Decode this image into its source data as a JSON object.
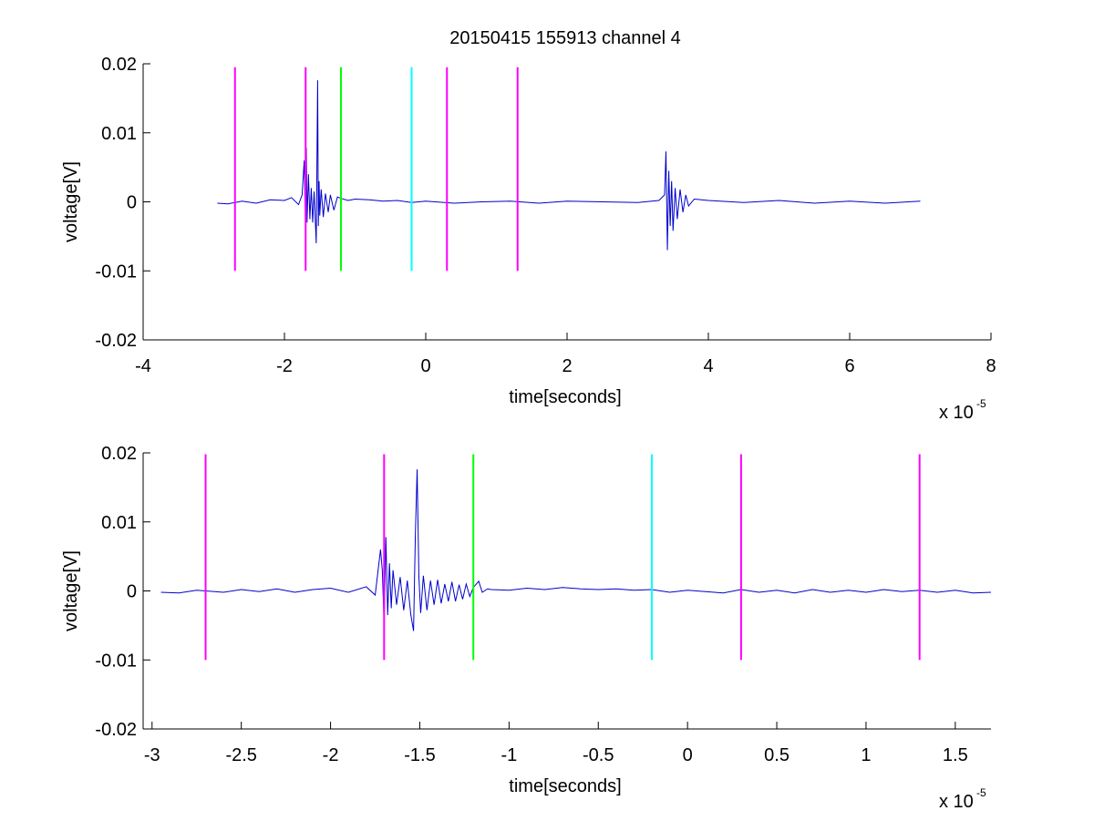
{
  "chart_data": [
    {
      "type": "line",
      "title": "20150415 155913 channel 4",
      "xlabel": "time[seconds]",
      "ylabel": "voltage[V]",
      "x_exponent_label": "x 10",
      "x_exponent": "-5",
      "xlim": [
        -4,
        8
      ],
      "ylim": [
        -0.02,
        0.02
      ],
      "xticks": [
        -4,
        -2,
        0,
        2,
        4,
        6,
        8
      ],
      "xtick_labels": [
        "-4",
        "-2",
        "0",
        "2",
        "4",
        "6",
        "8"
      ],
      "yticks": [
        -0.02,
        -0.01,
        0,
        0.01,
        0.02
      ],
      "ytick_labels": [
        "-0.02",
        "-0.01",
        "0",
        "0.01",
        "0.02"
      ],
      "grid": false,
      "series_color": "#0000cc",
      "series": [
        {
          "x": [
            -2.95,
            -2.8,
            -2.6,
            -2.4,
            -2.2,
            -2.0,
            -1.9,
            -1.8,
            -1.75,
            -1.72,
            -1.7,
            -1.69,
            -1.68,
            -1.66,
            -1.64,
            -1.62,
            -1.6,
            -1.58,
            -1.55,
            -1.53,
            -1.52,
            -1.51,
            -1.5,
            -1.48,
            -1.45,
            -1.42,
            -1.38,
            -1.35,
            -1.3,
            -1.25,
            -1.2,
            -1.1,
            -1.0,
            -0.8,
            -0.6,
            -0.4,
            -0.2,
            0.0,
            0.4,
            0.8,
            1.2,
            1.6,
            2.0,
            2.5,
            3.0,
            3.3,
            3.38,
            3.4,
            3.42,
            3.44,
            3.46,
            3.48,
            3.5,
            3.53,
            3.56,
            3.6,
            3.64,
            3.68,
            3.72,
            3.8,
            4.0,
            4.5,
            5.0,
            5.5,
            6.0,
            6.5,
            7.0
          ],
          "y": [
            -0.0002,
            -0.0003,
            0.0001,
            -0.0002,
            0.0003,
            0.0002,
            0.0006,
            -0.0004,
            0.001,
            0.006,
            -0.0045,
            0.0078,
            -0.003,
            0.004,
            -0.0025,
            0.002,
            -0.003,
            0.0015,
            -0.006,
            0.0176,
            -0.0035,
            0.003,
            -0.002,
            0.0018,
            -0.0022,
            0.0012,
            -0.0015,
            0.001,
            -0.0012,
            0.0007,
            0.0005,
            0.0002,
            0.0004,
            0.0003,
            0.0001,
            0.0002,
            -0.0001,
            0.0001,
            -0.0002,
            0.0,
            0.0001,
            -0.0002,
            0.0001,
            0.0,
            -0.0001,
            0.0002,
            0.001,
            0.0073,
            -0.007,
            0.0045,
            -0.0035,
            0.003,
            -0.0042,
            0.002,
            -0.0025,
            0.0018,
            -0.0015,
            0.001,
            -0.0006,
            0.0004,
            0.0002,
            -0.0001,
            0.0002,
            -0.0002,
            0.0001,
            -0.0002,
            0.0001
          ]
        }
      ],
      "vertical_markers": [
        {
          "x": -2.7,
          "y_range": [
            -0.01,
            0.0195
          ],
          "color": "#ff00ff"
        },
        {
          "x": -1.7,
          "y_range": [
            -0.01,
            0.0195
          ],
          "color": "#ff00ff"
        },
        {
          "x": -1.2,
          "y_range": [
            -0.01,
            0.0195
          ],
          "color": "#00ff00"
        },
        {
          "x": -0.2,
          "y_range": [
            -0.01,
            0.0195
          ],
          "color": "#00ffff"
        },
        {
          "x": 0.3,
          "y_range": [
            -0.01,
            0.0195
          ],
          "color": "#ff00ff"
        },
        {
          "x": 1.3,
          "y_range": [
            -0.01,
            0.0195
          ],
          "color": "#ff00ff"
        }
      ]
    },
    {
      "type": "line",
      "title": "",
      "xlabel": "time[seconds]",
      "ylabel": "voltage[V]",
      "x_exponent_label": "x 10",
      "x_exponent": "-5",
      "xlim": [
        -3.05,
        1.7
      ],
      "ylim": [
        -0.02,
        0.02
      ],
      "xticks": [
        -3,
        -2.5,
        -2,
        -1.5,
        -1,
        -0.5,
        0,
        0.5,
        1,
        1.5
      ],
      "xtick_labels": [
        "-3",
        "-2.5",
        "-2",
        "-1.5",
        "-1",
        "-0.5",
        "0",
        "0.5",
        "1",
        "1.5"
      ],
      "yticks": [
        -0.02,
        -0.01,
        0,
        0.01,
        0.02
      ],
      "ytick_labels": [
        "-0.02",
        "-0.01",
        "0",
        "0.01",
        "0.02"
      ],
      "grid": false,
      "series_color": "#0000cc",
      "series": [
        {
          "x": [
            -2.95,
            -2.85,
            -2.75,
            -2.6,
            -2.5,
            -2.4,
            -2.3,
            -2.2,
            -2.1,
            -2.0,
            -1.9,
            -1.8,
            -1.75,
            -1.72,
            -1.71,
            -1.7,
            -1.69,
            -1.68,
            -1.67,
            -1.66,
            -1.65,
            -1.63,
            -1.61,
            -1.59,
            -1.57,
            -1.55,
            -1.535,
            -1.525,
            -1.515,
            -1.505,
            -1.495,
            -1.48,
            -1.46,
            -1.44,
            -1.42,
            -1.4,
            -1.38,
            -1.36,
            -1.34,
            -1.32,
            -1.3,
            -1.28,
            -1.26,
            -1.24,
            -1.22,
            -1.2,
            -1.17,
            -1.15,
            -1.12,
            -1.1,
            -1.0,
            -0.9,
            -0.8,
            -0.7,
            -0.6,
            -0.5,
            -0.4,
            -0.3,
            -0.2,
            -0.1,
            0.0,
            0.1,
            0.2,
            0.3,
            0.4,
            0.5,
            0.6,
            0.7,
            0.8,
            0.9,
            1.0,
            1.1,
            1.2,
            1.3,
            1.4,
            1.5,
            1.6,
            1.7
          ],
          "y": [
            -0.0002,
            -0.0003,
            0.0001,
            -0.0002,
            0.0002,
            -0.0001,
            0.0003,
            -0.0002,
            0.0002,
            0.0004,
            -0.0002,
            0.0006,
            -0.0006,
            0.006,
            0.003,
            -0.0048,
            0.0078,
            -0.0035,
            0.004,
            -0.0025,
            0.003,
            -0.002,
            0.002,
            -0.0028,
            0.0015,
            -0.0035,
            -0.0058,
            0.008,
            0.0176,
            0.002,
            -0.0032,
            0.0022,
            -0.0028,
            0.0015,
            -0.002,
            0.0016,
            -0.0018,
            0.001,
            -0.0015,
            0.0013,
            -0.0015,
            0.0009,
            -0.0012,
            0.001,
            -0.0008,
            0.0005,
            0.0014,
            -0.0002,
            0.0003,
            0.0002,
            0.0001,
            0.0004,
            0.0002,
            0.0005,
            0.0003,
            0.0002,
            0.0003,
            0.0001,
            0.0002,
            -0.0002,
            0.0001,
            -0.0001,
            -0.0003,
            0.0002,
            -0.0002,
            0.0001,
            -0.0003,
            0.0002,
            -0.0002,
            0.0001,
            -0.0002,
            0.0002,
            -0.0001,
            0.0001,
            -0.0002,
            0.0001,
            -0.0003,
            -0.0002
          ]
        }
      ],
      "vertical_markers": [
        {
          "x": -2.7,
          "y_range": [
            -0.01,
            0.0198
          ],
          "color": "#ff00ff"
        },
        {
          "x": -1.7,
          "y_range": [
            -0.01,
            0.0198
          ],
          "color": "#ff00ff"
        },
        {
          "x": -1.2,
          "y_range": [
            -0.01,
            0.0198
          ],
          "color": "#00ff00"
        },
        {
          "x": -0.2,
          "y_range": [
            -0.01,
            0.0198
          ],
          "color": "#00ffff"
        },
        {
          "x": 0.3,
          "y_range": [
            -0.01,
            0.0198
          ],
          "color": "#ff00ff"
        },
        {
          "x": 1.3,
          "y_range": [
            -0.01,
            0.0198
          ],
          "color": "#ff00ff"
        }
      ]
    }
  ]
}
